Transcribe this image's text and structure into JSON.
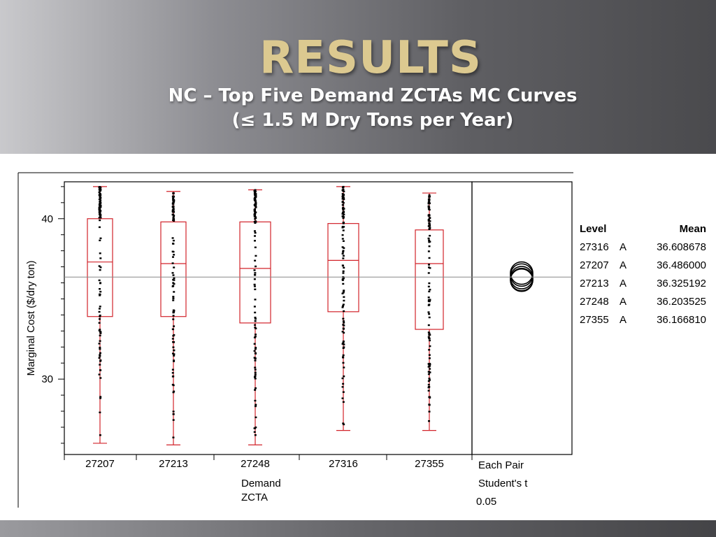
{
  "slide": {
    "title": "RESULTS",
    "subtitle_line1": "NC – Top Five Demand ZCTAs MC Curves",
    "subtitle_line2": "(≤ 1.5 M Dry Tons per Year)"
  },
  "colors": {
    "box": "#d2232a",
    "grand_mean_line": "#888888",
    "points": "#000000",
    "title": "#dcc990"
  },
  "chart_data": {
    "type": "box",
    "ylabel": "Marginal Cost ($/dry ton)",
    "xlabel_line1": "Demand",
    "xlabel_line2": "ZCTA",
    "ylim": [
      25.3,
      42.3
    ],
    "yticks": [
      30,
      40
    ],
    "grand_mean": 36.36,
    "categories": [
      "27207",
      "27213",
      "27248",
      "27316",
      "27355"
    ],
    "boxes": [
      {
        "category": "27207",
        "min": 26.0,
        "q1": 33.9,
        "median": 37.3,
        "q3": 40.0,
        "max": 42.0
      },
      {
        "category": "27213",
        "min": 25.9,
        "q1": 33.9,
        "median": 37.2,
        "q3": 39.8,
        "max": 41.7
      },
      {
        "category": "27248",
        "min": 25.9,
        "q1": 33.5,
        "median": 36.9,
        "q3": 39.8,
        "max": 41.8
      },
      {
        "category": "27316",
        "min": 26.8,
        "q1": 34.2,
        "median": 37.4,
        "q3": 39.7,
        "max": 42.0
      },
      {
        "category": "27355",
        "min": 26.8,
        "q1": 33.1,
        "median": 37.2,
        "q3": 39.3,
        "max": 41.6
      }
    ],
    "comparison_panel": {
      "label_line1": "Each Pair",
      "label_line2": "Student's t",
      "label_line3": "0.05",
      "circle_means": [
        36.608678,
        36.486,
        36.325192,
        36.203525,
        36.16681
      ]
    },
    "means_table": {
      "headers": [
        "Level",
        "Mean"
      ],
      "rows": [
        {
          "level": "27316",
          "group": "A",
          "mean": "36.608678"
        },
        {
          "level": "27207",
          "group": "A",
          "mean": "36.486000"
        },
        {
          "level": "27213",
          "group": "A",
          "mean": "36.325192"
        },
        {
          "level": "27248",
          "group": "A",
          "mean": "36.203525"
        },
        {
          "level": "27355",
          "group": "A",
          "mean": "36.166810"
        }
      ]
    }
  }
}
